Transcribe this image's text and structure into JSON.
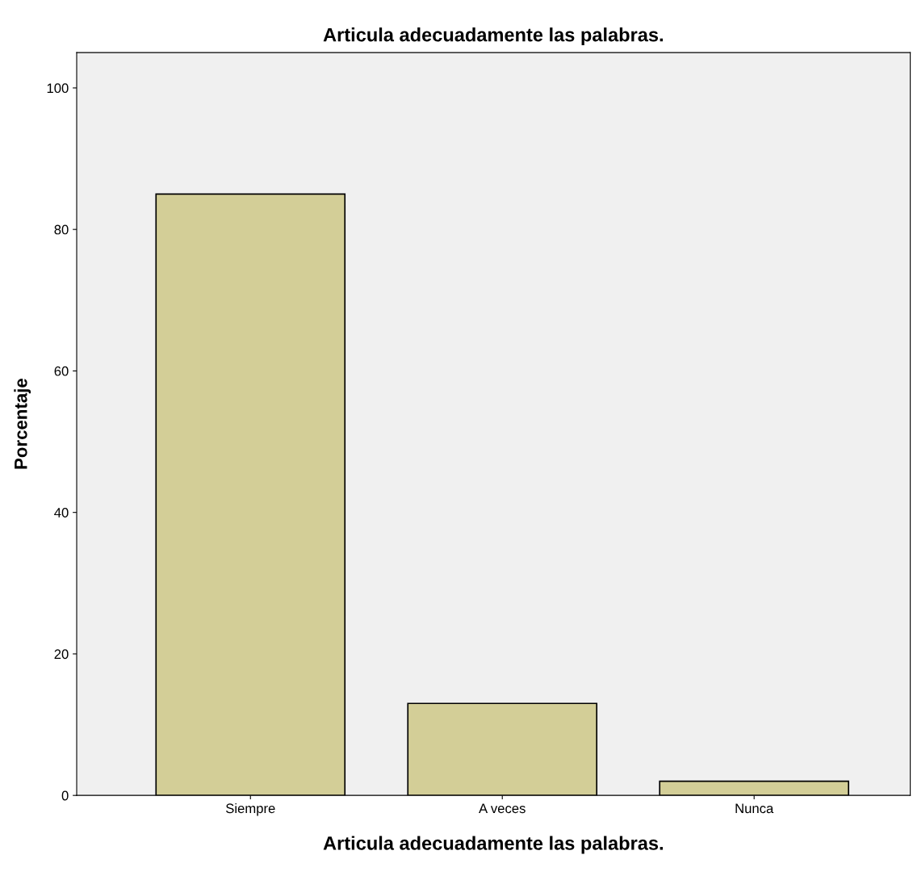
{
  "chart_data": {
    "type": "bar",
    "title": "Articula adecuadamente las palabras.",
    "xlabel": "Articula adecuadamente las palabras.",
    "ylabel": "Porcentaje",
    "categories": [
      "Siempre",
      "A veces",
      "Nunca"
    ],
    "values": [
      85.0,
      13.0,
      2.0
    ],
    "color": "#d3ce97",
    "ylim": [
      0,
      105
    ],
    "yticks": [
      0,
      20,
      40,
      60,
      80,
      100
    ],
    "grid": false,
    "legend": false
  }
}
